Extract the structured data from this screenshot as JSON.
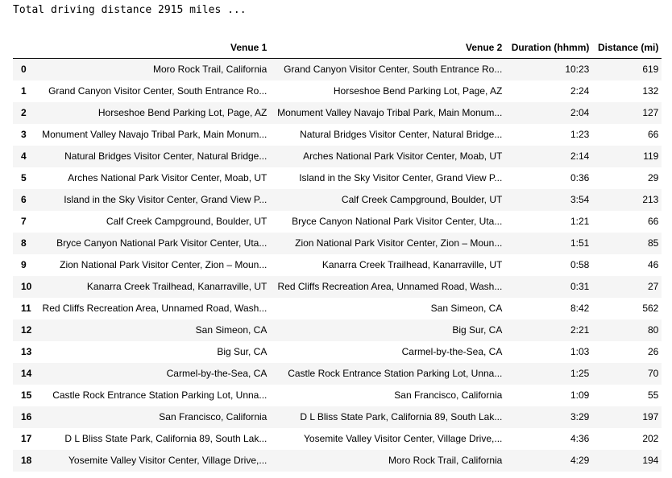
{
  "output_text": "Total driving distance 2915 miles ...",
  "table": {
    "headers": {
      "index": "",
      "venue1": "Venue 1",
      "venue2": "Venue 2",
      "duration": "Duration (hhmm)",
      "distance": "Distance (mi)"
    },
    "rows": [
      {
        "idx": "0",
        "venue1": "Moro Rock Trail, California",
        "venue2": "Grand Canyon Visitor Center, South Entrance Ro...",
        "duration": "10:23",
        "distance": "619"
      },
      {
        "idx": "1",
        "venue1": "Grand Canyon Visitor Center, South Entrance Ro...",
        "venue2": "Horseshoe Bend Parking Lot, Page, AZ",
        "duration": "2:24",
        "distance": "132"
      },
      {
        "idx": "2",
        "venue1": "Horseshoe Bend Parking Lot, Page, AZ",
        "venue2": "Monument Valley Navajo Tribal Park, Main Monum...",
        "duration": "2:04",
        "distance": "127"
      },
      {
        "idx": "3",
        "venue1": "Monument Valley Navajo Tribal Park, Main Monum...",
        "venue2": "Natural Bridges Visitor Center, Natural Bridge...",
        "duration": "1:23",
        "distance": "66"
      },
      {
        "idx": "4",
        "venue1": "Natural Bridges Visitor Center, Natural Bridge...",
        "venue2": "Arches National Park Visitor Center, Moab, UT",
        "duration": "2:14",
        "distance": "119"
      },
      {
        "idx": "5",
        "venue1": "Arches National Park Visitor Center, Moab, UT",
        "venue2": "Island in the Sky Visitor Center, Grand View P...",
        "duration": "0:36",
        "distance": "29"
      },
      {
        "idx": "6",
        "venue1": "Island in the Sky Visitor Center, Grand View P...",
        "venue2": "Calf Creek Campground, Boulder, UT",
        "duration": "3:54",
        "distance": "213"
      },
      {
        "idx": "7",
        "venue1": "Calf Creek Campground, Boulder, UT",
        "venue2": "Bryce Canyon National Park Visitor Center, Uta...",
        "duration": "1:21",
        "distance": "66"
      },
      {
        "idx": "8",
        "venue1": "Bryce Canyon National Park Visitor Center, Uta...",
        "venue2": "Zion National Park Visitor Center, Zion – Moun...",
        "duration": "1:51",
        "distance": "85"
      },
      {
        "idx": "9",
        "venue1": "Zion National Park Visitor Center, Zion – Moun...",
        "venue2": "Kanarra Creek Trailhead, Kanarraville, UT",
        "duration": "0:58",
        "distance": "46"
      },
      {
        "idx": "10",
        "venue1": "Kanarra Creek Trailhead, Kanarraville, UT",
        "venue2": "Red Cliffs Recreation Area, Unnamed Road, Wash...",
        "duration": "0:31",
        "distance": "27"
      },
      {
        "idx": "11",
        "venue1": "Red Cliffs Recreation Area, Unnamed Road, Wash...",
        "venue2": "San Simeon, CA",
        "duration": "8:42",
        "distance": "562"
      },
      {
        "idx": "12",
        "venue1": "San Simeon, CA",
        "venue2": "Big Sur, CA",
        "duration": "2:21",
        "distance": "80"
      },
      {
        "idx": "13",
        "venue1": "Big Sur, CA",
        "venue2": "Carmel-by-the-Sea, CA",
        "duration": "1:03",
        "distance": "26"
      },
      {
        "idx": "14",
        "venue1": "Carmel-by-the-Sea, CA",
        "venue2": "Castle Rock Entrance Station Parking Lot, Unna...",
        "duration": "1:25",
        "distance": "70"
      },
      {
        "idx": "15",
        "venue1": "Castle Rock Entrance Station Parking Lot, Unna...",
        "venue2": "San Francisco, California",
        "duration": "1:09",
        "distance": "55"
      },
      {
        "idx": "16",
        "venue1": "San Francisco, California",
        "venue2": "D L Bliss State Park, California 89, South Lak...",
        "duration": "3:29",
        "distance": "197"
      },
      {
        "idx": "17",
        "venue1": "D L Bliss State Park, California 89, South Lak...",
        "venue2": "Yosemite Valley Visitor Center, Village Drive,...",
        "duration": "4:36",
        "distance": "202"
      },
      {
        "idx": "18",
        "venue1": "Yosemite Valley Visitor Center, Village Drive,...",
        "venue2": "Moro Rock Trail, California",
        "duration": "4:29",
        "distance": "194"
      }
    ]
  }
}
